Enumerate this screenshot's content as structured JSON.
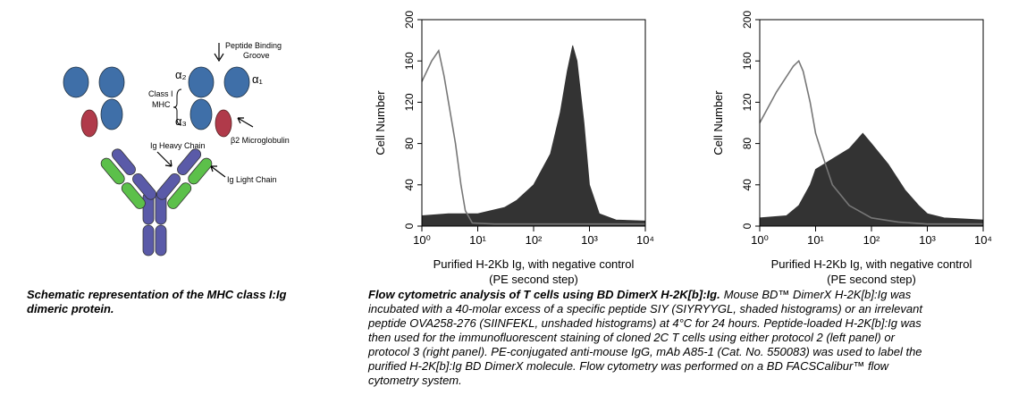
{
  "schematic": {
    "peptide_groove": [
      "Peptide Binding",
      "Groove"
    ],
    "alpha2": "α₂",
    "alpha1": "α₁",
    "class_label": [
      "Class I",
      "MHC"
    ],
    "alpha3": "α₃",
    "b2m": "β2 Microglobulin",
    "heavy": "Ig Heavy Chain",
    "light": "Ig Light Chain"
  },
  "captions": {
    "left": "Schematic representation of the MHC class I:Ig dimeric protein.",
    "right_title": "Flow cytometric analysis of T cells using BD DimerX H-2K[b]:Ig.",
    "right_body": "Mouse BD™ DimerX H-2K[b]:Ig was incubated with a 40-molar excess of a specific peptide SIY (SIYRYYGL, shaded histograms) or an irrelevant peptide OVA258-276 (SIINFEKL, unshaded histograms) at 4°C for 24 hours. Peptide-loaded H-2K[b]:Ig was then used for the immunofluorescent staining of cloned 2C T cells using either protocol 2 (left panel) or protocol 3 (right panel). PE-conjugated anti-mouse IgG, mAb A85-1 (Cat. No. 550083) was used to label the purified H-2K[b]:Ig BD DimerX molecule. Flow cytometry was performed on a BD FACSCalibur™ flow cytometry system."
  },
  "chart_data": [
    {
      "type": "area",
      "ylabel": "Cell Number",
      "xlabel": [
        "Purified H-2Kb Ig, with negative control",
        "(PE second step)"
      ],
      "xscale": "log",
      "xlim": [
        1,
        10000
      ],
      "xticks": [
        {
          "value": 1,
          "label": "10⁰"
        },
        {
          "value": 10,
          "label": "10¹"
        },
        {
          "value": 100,
          "label": "10²"
        },
        {
          "value": 1000,
          "label": "10³"
        },
        {
          "value": 10000,
          "label": "10⁴"
        }
      ],
      "ylim": [
        0,
        200
      ],
      "yticks": [
        0,
        40,
        80,
        120,
        160,
        200
      ],
      "series": [
        {
          "color": "#333333",
          "fill": true,
          "x": [
            1,
            3,
            10,
            30,
            50,
            100,
            200,
            300,
            400,
            500,
            600,
            800,
            1000,
            1500,
            3000,
            10000
          ],
          "values": [
            10,
            12,
            12,
            18,
            25,
            40,
            70,
            110,
            150,
            175,
            160,
            100,
            40,
            12,
            6,
            5
          ]
        },
        {
          "color": "#777777",
          "fill": false,
          "x": [
            1,
            1.5,
            2,
            2.5,
            3,
            4,
            5,
            6,
            8,
            20,
            100,
            1000,
            10000
          ],
          "values": [
            140,
            160,
            170,
            145,
            120,
            80,
            40,
            15,
            3,
            2,
            2,
            2,
            2
          ]
        }
      ]
    },
    {
      "type": "area",
      "ylabel": "Cell Number",
      "xlabel": [
        "Purified H-2Kb Ig, with negative control",
        "(PE second step)"
      ],
      "xscale": "log",
      "xlim": [
        1,
        10000
      ],
      "xticks": [
        {
          "value": 1,
          "label": "10⁰"
        },
        {
          "value": 10,
          "label": "10¹"
        },
        {
          "value": 100,
          "label": "10²"
        },
        {
          "value": 1000,
          "label": "10³"
        },
        {
          "value": 10000,
          "label": "10⁴"
        }
      ],
      "ylim": [
        0,
        200
      ],
      "yticks": [
        0,
        40,
        80,
        120,
        160,
        200
      ],
      "series": [
        {
          "color": "#333333",
          "fill": true,
          "x": [
            1,
            3,
            5,
            8,
            10,
            20,
            40,
            70,
            100,
            200,
            400,
            700,
            1000,
            2000,
            10000
          ],
          "values": [
            8,
            10,
            20,
            40,
            55,
            65,
            75,
            90,
            80,
            60,
            35,
            20,
            12,
            8,
            6
          ]
        },
        {
          "color": "#777777",
          "fill": false,
          "x": [
            1,
            2,
            4,
            5,
            6,
            8,
            10,
            15,
            20,
            40,
            100,
            300,
            1000,
            10000
          ],
          "values": [
            100,
            130,
            155,
            160,
            150,
            120,
            90,
            60,
            40,
            20,
            8,
            4,
            2,
            2
          ]
        }
      ]
    }
  ]
}
